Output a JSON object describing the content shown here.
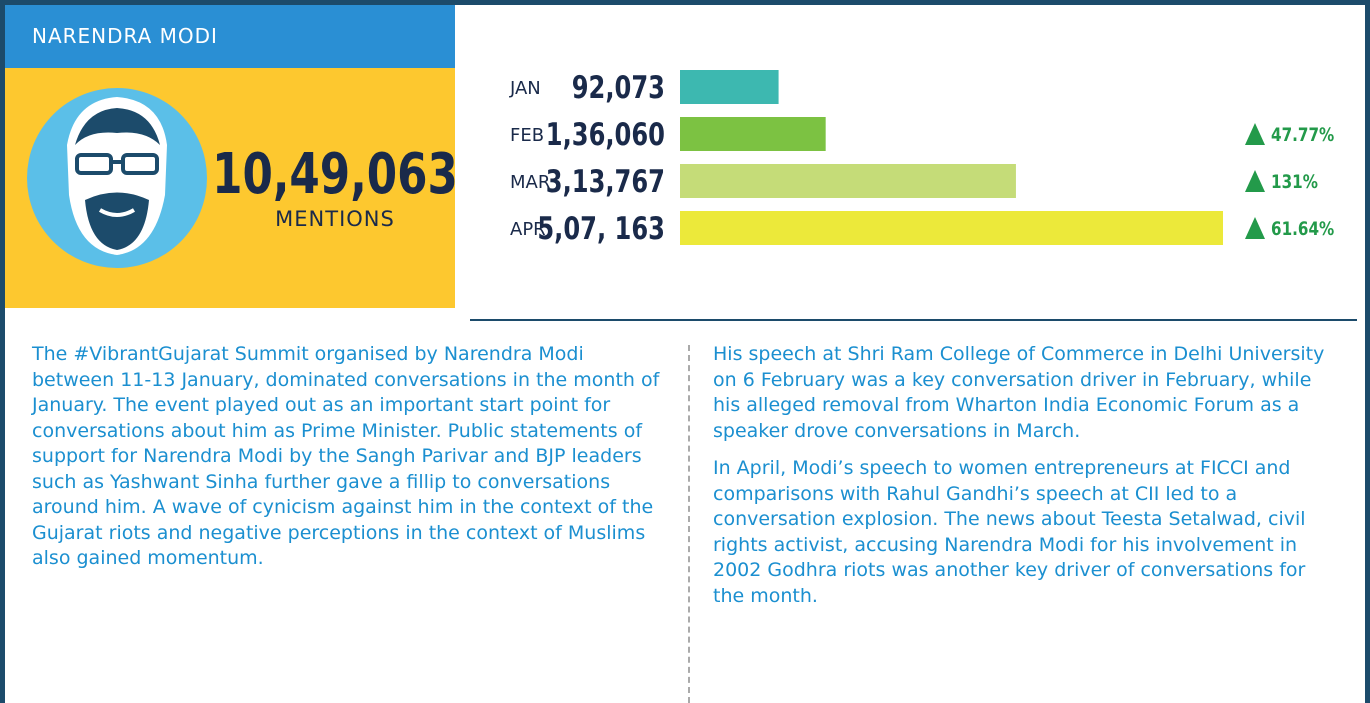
{
  "header": {
    "name": "NARENDRA MODI",
    "total": 1049063,
    "total_label": "10,49,063",
    "total_caption": "MENTIONS"
  },
  "chart_data": {
    "type": "hbar",
    "categories": [
      "JAN",
      "FEB",
      "MAR",
      "APR"
    ],
    "values": [
      92073,
      136060,
      313767,
      507163
    ],
    "value_labels": [
      "92,073",
      "1,36,060",
      "3,13,767",
      "5,07, 163"
    ],
    "colors": [
      "#3db8b0",
      "#7cc242",
      "#c5dc78",
      "#ece93a"
    ],
    "change": [
      null,
      47.77,
      131,
      61.64
    ],
    "change_labels": [
      null,
      "47.77%",
      "131%",
      "61.64%"
    ],
    "change_color": "#239a4a"
  },
  "text": {
    "left": [
      "The #VibrantGujarat Summit organised by Narendra Modi between 11-13 January, dominated conversations in the month of January. The event played out as an important start point for conversations about him as Prime Minister. Public statements of support for Narendra Modi by the Sangh Parivar and BJP leaders such as Yashwant Sinha further gave a fillip to conversations around him. A wave of cynicism against him in the context of the Gujarat riots and negative perceptions in the context of Muslims also gained momentum."
    ],
    "right": [
      "His speech at Shri Ram College of Commerce in Delhi University on 6 February was a key conversation driver in February, while his alleged removal from Wharton India Economic Forum as a speaker drove conversations in March.",
      "In April, Modi’s speech to women entrepreneurs at FICCI and comparisons with Rahul Gandhi’s speech at CII led to a conversation explosion. The news about Teesta Setalwad, civil rights activist, accusing Narendra Modi for his involvement in 2002 Godhra riots was another key driver of conversations for the month."
    ]
  }
}
